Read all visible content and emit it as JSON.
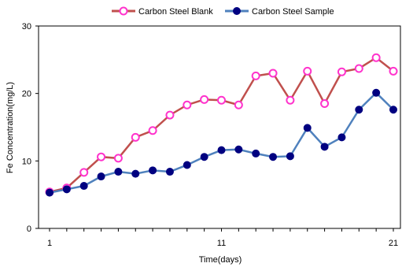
{
  "chart_data": {
    "type": "line",
    "title": "",
    "xlabel": "Time(days)",
    "ylabel": "Fe Concentration(mg/L)",
    "xlim": [
      1,
      21
    ],
    "ylim": [
      0,
      30
    ],
    "x_ticks": [
      "1",
      "11",
      "21"
    ],
    "y_ticks": [
      "0",
      "10",
      "20",
      "30"
    ],
    "grid": false,
    "legend_position": "top",
    "x": [
      1,
      2,
      3,
      4,
      5,
      6,
      7,
      8,
      9,
      10,
      11,
      12,
      13,
      14,
      15,
      16,
      17,
      18,
      19,
      20,
      21
    ],
    "series": [
      {
        "name": "Carbon Steel Blank",
        "line_color": "#c0504d",
        "marker_color": "#ff33cc",
        "marker": "open-circle",
        "values": [
          5.4,
          6.0,
          8.3,
          10.6,
          10.4,
          13.5,
          14.5,
          16.8,
          18.3,
          19.1,
          19.0,
          18.3,
          22.6,
          23.0,
          19.0,
          23.3,
          18.5,
          23.2,
          23.7,
          25.3,
          23.3
        ]
      },
      {
        "name": "Carbon Steel Sample",
        "line_color": "#4f81bd",
        "marker_color": "#000080",
        "marker": "filled-circle",
        "values": [
          5.3,
          5.8,
          6.3,
          7.7,
          8.4,
          8.1,
          8.6,
          8.4,
          9.4,
          10.6,
          11.6,
          11.7,
          11.1,
          10.6,
          10.7,
          14.9,
          12.1,
          13.5,
          17.6,
          20.1,
          17.6
        ]
      }
    ]
  }
}
